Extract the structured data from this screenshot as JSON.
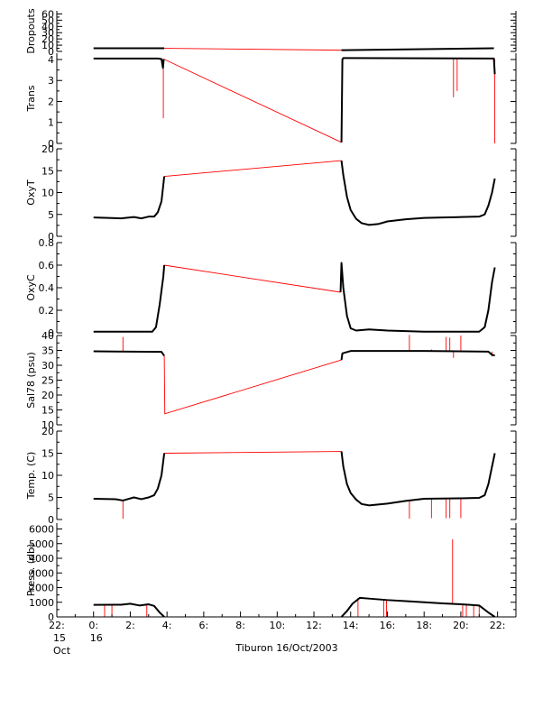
{
  "caption": "Tiburon 16/Oct/2003",
  "time_axis": {
    "range": [
      -2,
      23
    ],
    "ticks": [
      {
        "t": -2,
        "lines": [
          "22:",
          "15",
          "Oct"
        ]
      },
      {
        "t": 0,
        "lines": [
          "0:",
          "16"
        ]
      },
      {
        "t": 2,
        "lines": [
          "2:"
        ]
      },
      {
        "t": 4,
        "lines": [
          "4:"
        ]
      },
      {
        "t": 6,
        "lines": [
          "6:"
        ]
      },
      {
        "t": 8,
        "lines": [
          "8:"
        ]
      },
      {
        "t": 10,
        "lines": [
          "10:"
        ]
      },
      {
        "t": 12,
        "lines": [
          "12:"
        ]
      },
      {
        "t": 14,
        "lines": [
          "14:"
        ]
      },
      {
        "t": 16,
        "lines": [
          "16:"
        ]
      },
      {
        "t": 18,
        "lines": [
          "18:"
        ]
      },
      {
        "t": 20,
        "lines": [
          "20:"
        ]
      },
      {
        "t": 22,
        "lines": [
          "22:"
        ]
      }
    ]
  },
  "colors": {
    "data": "#000000",
    "gap": "#ff0000",
    "spike": "#ff0000",
    "axis": "#000000"
  },
  "chart_data": [
    {
      "type": "line",
      "ylabel": "Dropouts",
      "ylim": [
        0,
        65
      ],
      "yticks": [
        0,
        10,
        20,
        30,
        40,
        50,
        60
      ],
      "x": [
        0,
        3.85,
        13.5,
        21.8
      ],
      "y": [
        5,
        5,
        2,
        5
      ],
      "segments": [
        [
          0,
          1
        ],
        [
          2,
          3
        ]
      ],
      "gap": [
        [
          3.85,
          5
        ],
        [
          13.5,
          2
        ]
      ],
      "spikes": []
    },
    {
      "type": "line",
      "ylabel": "Trans",
      "ylim": [
        0,
        4.3
      ],
      "yticks": [
        0,
        1,
        2,
        3,
        4
      ],
      "x": [
        0,
        3.5,
        3.7,
        3.78,
        3.82,
        13.5,
        13.55,
        13.6,
        14,
        21.8,
        21.85
      ],
      "y": [
        4.05,
        4.05,
        4.02,
        3.6,
        4.02,
        0.05,
        4.0,
        4.07,
        4.07,
        4.05,
        3.3
      ],
      "segments": [
        [
          0,
          4
        ],
        [
          5,
          10
        ]
      ],
      "gap": [
        [
          3.82,
          4.02
        ],
        [
          13.5,
          0.05
        ]
      ],
      "spikes": [
        [
          3.8,
          4.0,
          1.2
        ],
        [
          19.6,
          4.05,
          2.2
        ],
        [
          19.8,
          4.05,
          2.5
        ],
        [
          21.85,
          4.0,
          0.0
        ]
      ]
    },
    {
      "type": "line",
      "ylabel": "OxyT",
      "ylim": [
        0,
        20
      ],
      "yticks": [
        0,
        5,
        10,
        15,
        20
      ],
      "x": [
        0,
        1.5,
        2.2,
        2.6,
        3.0,
        3.3,
        3.5,
        3.7,
        3.85,
        13.5,
        13.6,
        13.8,
        14.0,
        14.3,
        14.6,
        15.0,
        15.5,
        16.0,
        17.0,
        18.0,
        19.0,
        20.0,
        21.0,
        21.3,
        21.5,
        21.7,
        21.85
      ],
      "y": [
        4.3,
        4.1,
        4.4,
        4.1,
        4.5,
        4.5,
        5.5,
        8.0,
        13.7,
        17.3,
        14.0,
        9.0,
        6.0,
        4.0,
        3.0,
        2.6,
        2.8,
        3.4,
        3.9,
        4.2,
        4.3,
        4.4,
        4.5,
        5.0,
        7.0,
        10.0,
        13.2
      ],
      "segments": [
        [
          0,
          8
        ],
        [
          9,
          26
        ]
      ],
      "gap": [
        [
          3.85,
          13.7
        ],
        [
          13.5,
          17.3
        ]
      ],
      "spikes": []
    },
    {
      "type": "line",
      "ylabel": "OxyC",
      "ylim": [
        0,
        0.8
      ],
      "yticks": [
        0.0,
        0.2,
        0.4,
        0.6,
        0.8
      ],
      "x": [
        0,
        3.2,
        3.4,
        3.6,
        3.8,
        3.85,
        13.45,
        13.5,
        13.6,
        13.8,
        14.0,
        14.3,
        15.0,
        16.0,
        18.0,
        20.0,
        21.0,
        21.3,
        21.5,
        21.7,
        21.85
      ],
      "y": [
        0.01,
        0.01,
        0.05,
        0.25,
        0.5,
        0.6,
        0.36,
        0.62,
        0.4,
        0.15,
        0.04,
        0.02,
        0.03,
        0.02,
        0.01,
        0.01,
        0.01,
        0.05,
        0.2,
        0.45,
        0.58
      ],
      "segments": [
        [
          0,
          5
        ],
        [
          6,
          20
        ]
      ],
      "gap": [
        [
          3.85,
          0.6
        ],
        [
          13.45,
          0.36
        ]
      ],
      "spikes": []
    },
    {
      "type": "line",
      "ylabel": "Sal78 (psu)",
      "ylim": [
        10,
        40
      ],
      "yticks": [
        10,
        15,
        20,
        25,
        30,
        35,
        40
      ],
      "x": [
        0,
        3.7,
        3.85,
        13.5,
        13.55,
        14,
        18,
        21.5,
        21.7,
        21.85
      ],
      "y": [
        34.7,
        34.5,
        33.2,
        31.8,
        34.0,
        34.8,
        34.8,
        34.6,
        33.5,
        33.3
      ],
      "segments": [
        [
          0,
          2
        ],
        [
          3,
          9
        ]
      ],
      "gap": [
        [
          3.85,
          33.2
        ],
        [
          3.88,
          13.7
        ],
        [
          13.5,
          31.8
        ]
      ],
      "spikes": [
        [
          1.6,
          34.7,
          39.5
        ],
        [
          17.2,
          34.8,
          40.2
        ],
        [
          18.4,
          34.8,
          35.3
        ],
        [
          19.2,
          34.8,
          39.5
        ],
        [
          19.4,
          34.8,
          39.3
        ],
        [
          19.6,
          34.8,
          32.5
        ],
        [
          20.0,
          34.8,
          40.0
        ],
        [
          21.7,
          34.6,
          33.0
        ]
      ]
    },
    {
      "type": "line",
      "ylabel": "Temp. (C)",
      "ylim": [
        0,
        20
      ],
      "yticks": [
        0,
        5,
        10,
        15,
        20
      ],
      "x": [
        0,
        1.2,
        1.6,
        2.2,
        2.6,
        3.0,
        3.3,
        3.5,
        3.7,
        3.85,
        13.5,
        13.6,
        13.8,
        14.0,
        14.3,
        14.6,
        15.0,
        16.0,
        17.0,
        18.0,
        20.0,
        21.0,
        21.3,
        21.5,
        21.7,
        21.85
      ],
      "y": [
        4.7,
        4.6,
        4.3,
        5.0,
        4.6,
        5.0,
        5.5,
        7.0,
        10.0,
        15.0,
        15.4,
        12.0,
        8.0,
        6.0,
        4.5,
        3.5,
        3.2,
        3.6,
        4.2,
        4.7,
        4.8,
        4.9,
        5.5,
        8.0,
        12.0,
        15.0
      ],
      "segments": [
        [
          0,
          9
        ],
        [
          10,
          25
        ]
      ],
      "gap": [
        [
          3.85,
          15.0
        ],
        [
          13.5,
          15.4
        ]
      ],
      "spikes": [
        [
          1.6,
          4.3,
          0.2
        ],
        [
          17.2,
          4.5,
          0.2
        ],
        [
          18.4,
          4.7,
          0.3
        ],
        [
          19.2,
          4.7,
          0.3
        ],
        [
          19.4,
          4.7,
          0.3
        ],
        [
          20.0,
          4.8,
          0.3
        ]
      ]
    },
    {
      "type": "line",
      "ylabel": "Press. (db)",
      "ylim": [
        0,
        6400
      ],
      "yticks": [
        0,
        1000,
        2000,
        3000,
        4000,
        5000,
        6000
      ],
      "x": [
        0,
        1.5,
        2.0,
        2.5,
        3.0,
        3.3,
        3.6,
        3.85,
        13.5,
        13.8,
        14.1,
        14.5,
        15.0,
        16.0,
        17.0,
        18.0,
        19.0,
        20.0,
        20.5,
        21.0,
        21.5,
        21.85
      ],
      "y": [
        820,
        830,
        900,
        780,
        860,
        750,
        300,
        5,
        5,
        400,
        900,
        1300,
        1250,
        1150,
        1080,
        1000,
        920,
        860,
        820,
        780,
        300,
        5
      ],
      "segments": [
        [
          0,
          7
        ],
        [
          8,
          21
        ]
      ],
      "gap": [
        [
          3.85,
          5
        ],
        [
          13.5,
          5
        ]
      ],
      "spikes": [
        [
          0.6,
          830,
          20
        ],
        [
          1.0,
          830,
          20
        ],
        [
          2.9,
          820,
          20
        ],
        [
          14.4,
          1290,
          20
        ],
        [
          15.8,
          1200,
          20
        ],
        [
          15.95,
          1200,
          20
        ],
        [
          19.55,
          900,
          5300
        ],
        [
          20.1,
          860,
          20
        ],
        [
          20.3,
          850,
          20
        ],
        [
          20.7,
          810,
          20
        ],
        [
          21.0,
          780,
          20
        ]
      ]
    }
  ]
}
